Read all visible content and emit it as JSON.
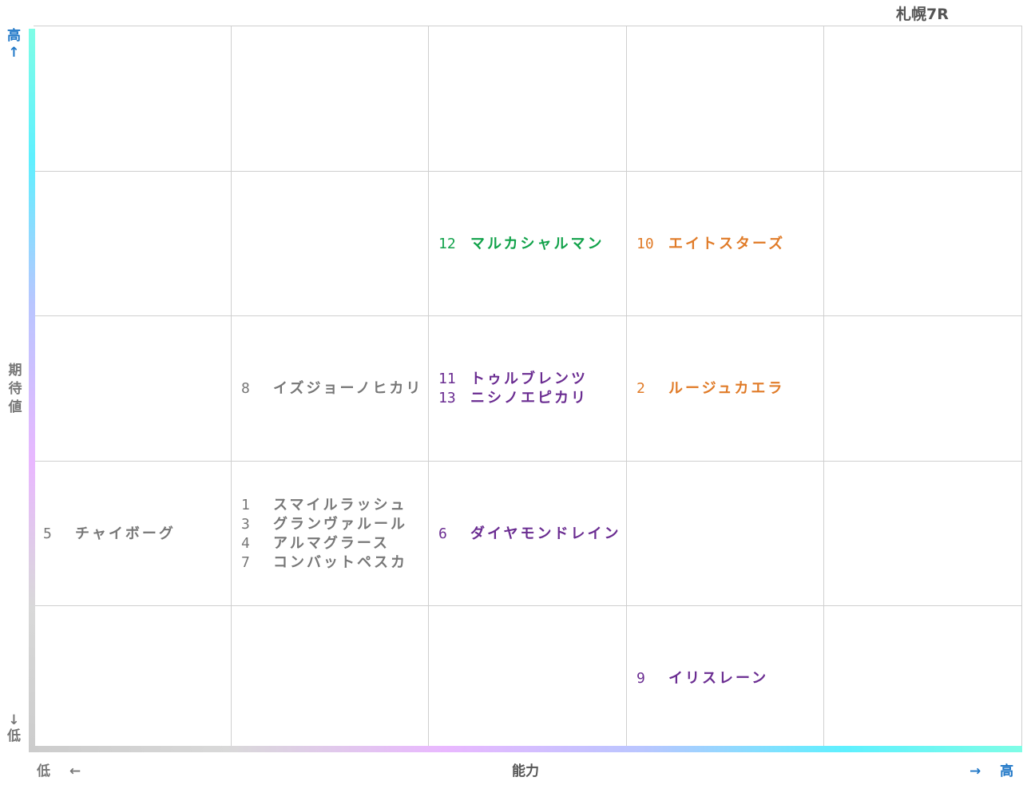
{
  "title": "札幌7R",
  "colors": {
    "gray": "#777777",
    "purple": "#6a2c91",
    "green": "#11a24a",
    "orange": "#e07b28",
    "axis_blue": "#1f77c7"
  },
  "axes": {
    "y_label": "期待値",
    "y_high": "高",
    "y_high_arrow": "↑",
    "y_low_arrow": "↓",
    "y_low": "低",
    "x_label": "能力",
    "x_low": "低",
    "x_low_arrow": "←",
    "x_high_arrow": "→",
    "x_high": "高"
  },
  "chart_data": {
    "type": "table",
    "title": "札幌7R",
    "xlabel": "能力",
    "ylabel": "期待値",
    "columns": 5,
    "rows": 5,
    "entries": [
      {
        "col": 2,
        "row": 1,
        "color": "green",
        "horses": [
          {
            "num": "12",
            "name": "マルカシャルマン"
          }
        ]
      },
      {
        "col": 3,
        "row": 1,
        "color": "orange",
        "horses": [
          {
            "num": "10",
            "name": "エイトスターズ"
          }
        ]
      },
      {
        "col": 1,
        "row": 2,
        "color": "gray",
        "horses": [
          {
            "num": "8",
            "name": "イズジョーノヒカリ"
          }
        ]
      },
      {
        "col": 2,
        "row": 2,
        "color": "purple",
        "horses": [
          {
            "num": "11",
            "name": "トゥルブレンツ"
          },
          {
            "num": "13",
            "name": "ニシノエピカリ"
          }
        ]
      },
      {
        "col": 3,
        "row": 2,
        "color": "orange",
        "horses": [
          {
            "num": "2",
            "name": "ルージュカエラ"
          }
        ]
      },
      {
        "col": 0,
        "row": 3,
        "color": "gray",
        "horses": [
          {
            "num": "5",
            "name": "チャイボーグ"
          }
        ]
      },
      {
        "col": 1,
        "row": 3,
        "color": "gray",
        "horses": [
          {
            "num": "1",
            "name": "スマイルラッシュ"
          },
          {
            "num": "3",
            "name": "グランヴァルール"
          },
          {
            "num": "4",
            "name": "アルマグラース"
          },
          {
            "num": "7",
            "name": "コンバットペスカ"
          }
        ]
      },
      {
        "col": 2,
        "row": 3,
        "color": "purple",
        "horses": [
          {
            "num": "6",
            "name": "ダイヤモンドレイン"
          }
        ]
      },
      {
        "col": 3,
        "row": 4,
        "color": "purple",
        "horses": [
          {
            "num": "9",
            "name": "イリスレーン"
          }
        ]
      }
    ]
  }
}
